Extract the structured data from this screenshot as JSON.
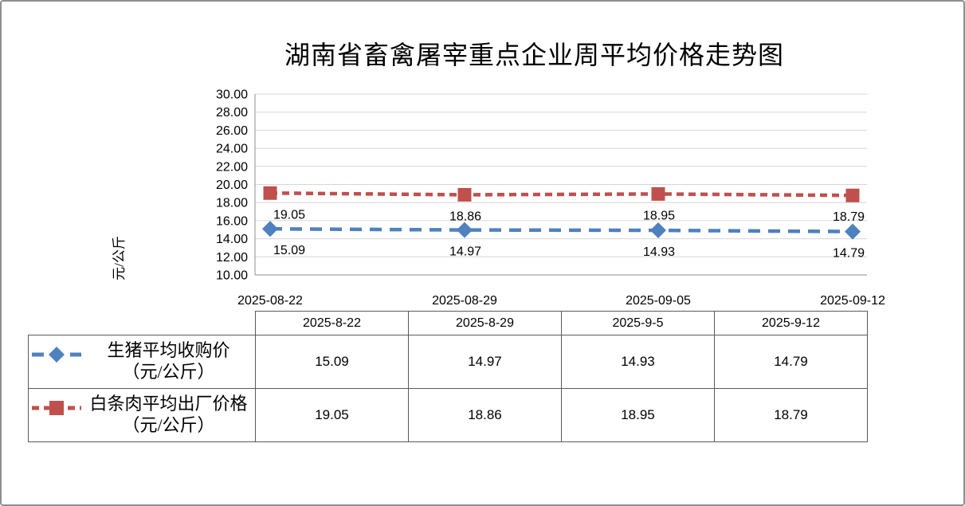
{
  "page": {
    "title": "湖南省畜禽屠宰重点企业周平均价格走势图"
  },
  "chart_data": {
    "type": "line",
    "title": "湖南省畜禽屠宰重点企业周平均价格走势图",
    "xlabel": "",
    "ylabel": "元/公斤",
    "ylim": [
      10,
      30
    ],
    "y_tick_step": 2,
    "y_ticks": [
      "30.00",
      "28.00",
      "26.00",
      "24.00",
      "22.00",
      "20.00",
      "18.00",
      "16.00",
      "14.00",
      "12.00",
      "10.00"
    ],
    "x_labels": [
      "2025-08-22",
      "2025-08-29",
      "2025-09-05",
      "2025-09-12"
    ],
    "grid": true,
    "grid_color": "#d6d6d6",
    "axis_color": "#8f8f8f",
    "legend_position": "table-left",
    "series": [
      {
        "name": "生猪平均收购价（元/公斤）",
        "values": [
          15.09,
          14.97,
          14.93,
          14.79
        ],
        "labels": [
          "15.09",
          "14.97",
          "14.93",
          "14.79"
        ],
        "color": "#4F81BD",
        "marker": "diamond",
        "line_style": "dashed"
      },
      {
        "name": "白条肉平均出厂价格（元/公斤）",
        "values": [
          19.05,
          18.86,
          18.95,
          18.79
        ],
        "labels": [
          "19.05",
          "18.86",
          "18.95",
          "18.79"
        ],
        "color": "#C0504D",
        "marker": "square",
        "line_style": "dashed"
      }
    ]
  },
  "table": {
    "columns": [
      "2025-8-22",
      "2025-8-29",
      "2025-9-5",
      "2025-9-12"
    ],
    "rows": [
      {
        "label_line1": "生猪平均收购价",
        "label_line2": "（元/公斤）",
        "values": [
          "15.09",
          "14.97",
          "14.93",
          "14.79"
        ]
      },
      {
        "label_line1": "白条肉平均出厂价格",
        "label_line2": "（元/公斤）",
        "values": [
          "19.05",
          "18.86",
          "18.95",
          "18.79"
        ]
      }
    ]
  }
}
